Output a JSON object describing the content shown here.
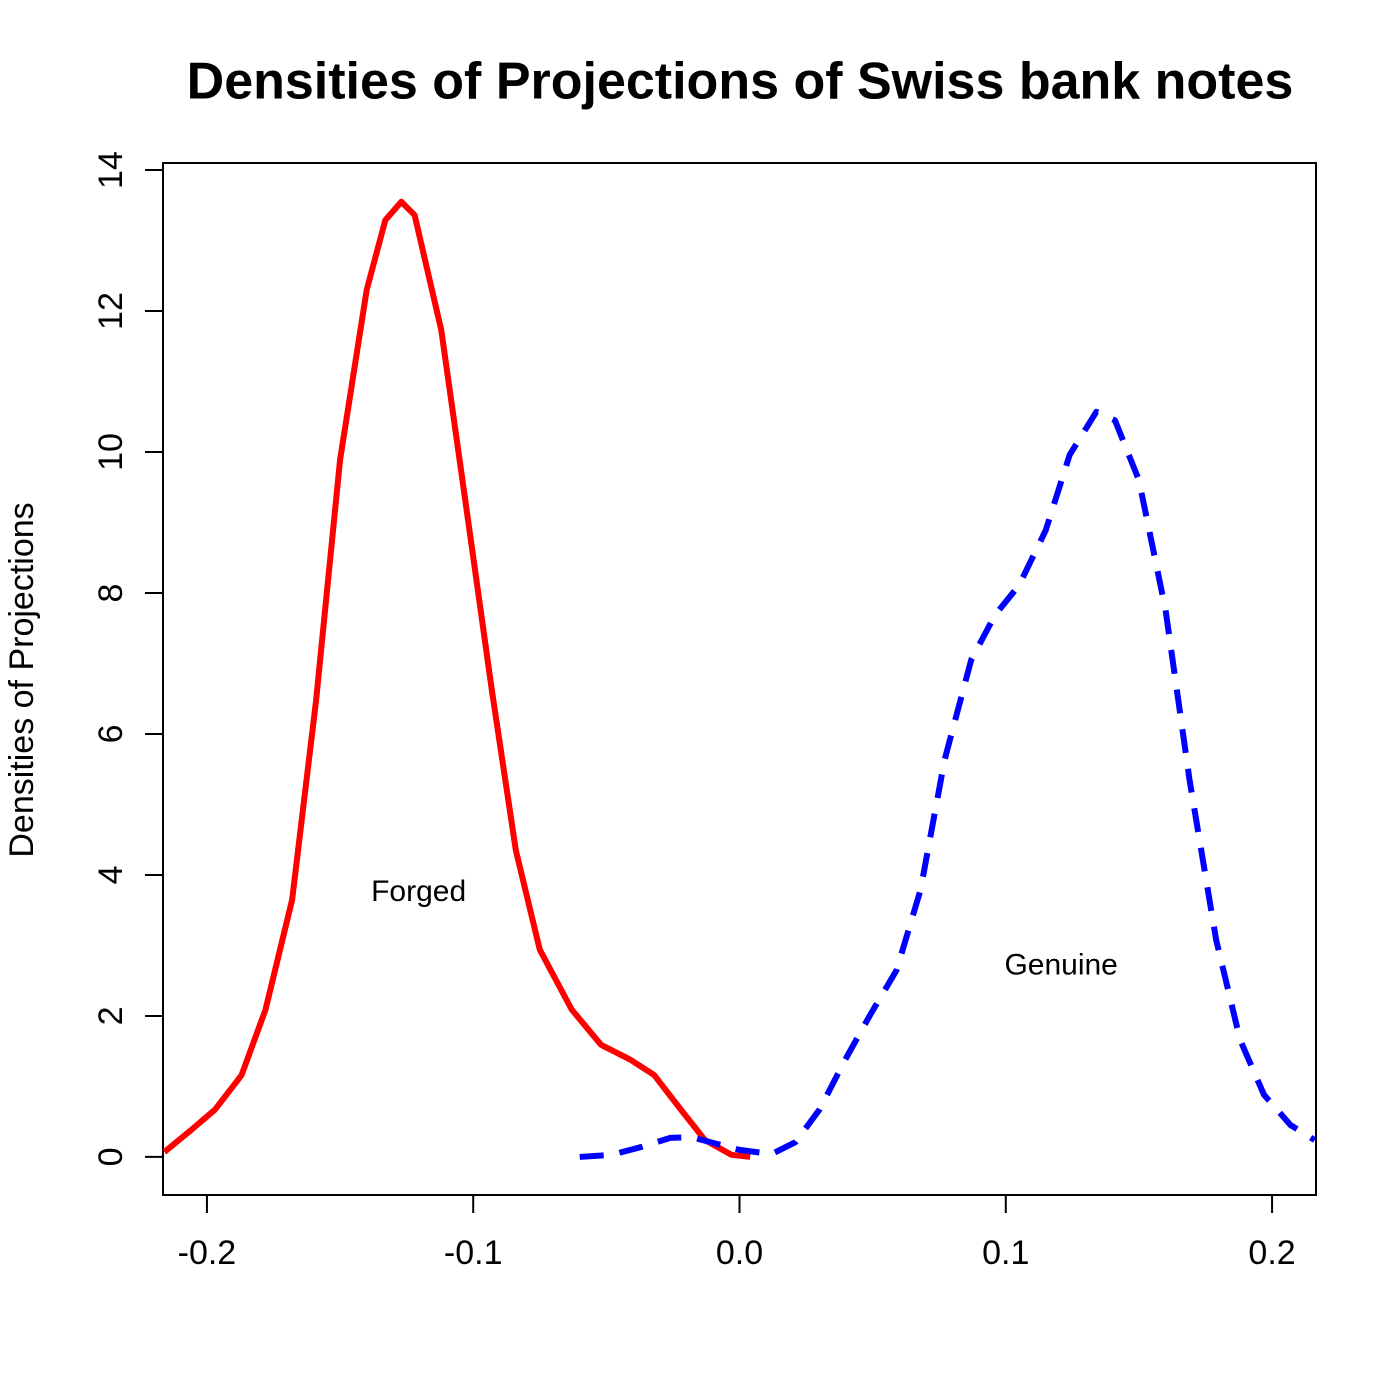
{
  "chart_data": {
    "type": "line",
    "title": "Densities of Projections of Swiss bank notes",
    "y_label": "Densities of Projections",
    "xlim": [
      -0.2165,
      0.2165
    ],
    "ylim": [
      -0.54,
      14.1
    ],
    "xticks": [
      -0.2,
      -0.1,
      {
        "value": 0,
        "label": "0.0"
      },
      0.1,
      0.2
    ],
    "yticks": [
      0,
      2,
      4,
      6,
      8,
      10,
      12,
      14
    ],
    "series": [
      {
        "name": "Forged",
        "color": "#ff0000",
        "dashed": false,
        "x": [
          -0.216,
          -0.206,
          -0.197,
          -0.187,
          -0.178,
          -0.168,
          -0.159,
          -0.15,
          -0.14,
          -0.133,
          -0.127,
          -0.122,
          -0.112,
          -0.103,
          -0.093,
          -0.084,
          -0.075,
          -0.063,
          -0.052,
          -0.041,
          -0.032,
          -0.022,
          -0.013,
          -0.003,
          0.004
        ],
        "values": [
          0.07,
          0.38,
          0.67,
          1.16,
          2.09,
          3.65,
          6.48,
          9.89,
          12.3,
          13.29,
          13.55,
          13.36,
          11.73,
          9.32,
          6.62,
          4.35,
          2.94,
          2.09,
          1.59,
          1.38,
          1.16,
          0.67,
          0.24,
          0.03,
          0.0
        ]
      },
      {
        "name": "Genuine",
        "color": "#0000ff",
        "dashed": true,
        "x": [
          -0.06,
          -0.048,
          -0.037,
          -0.026,
          -0.018,
          -0.011,
          0.0,
          0.012,
          0.021,
          0.03,
          0.04,
          0.049,
          0.059,
          0.068,
          0.077,
          0.087,
          0.096,
          0.105,
          0.115,
          0.124,
          0.134,
          0.141,
          0.15,
          0.16,
          0.169,
          0.179,
          0.188,
          0.197,
          0.207,
          0.216
        ],
        "values": [
          0,
          0.03,
          0.14,
          0.27,
          0.28,
          0.21,
          0.1,
          0.04,
          0.21,
          0.67,
          1.4,
          2.01,
          2.65,
          3.79,
          5.63,
          7.05,
          7.69,
          8.11,
          8.89,
          9.96,
          10.57,
          10.45,
          9.6,
          7.76,
          5.35,
          3.08,
          1.66,
          0.88,
          0.45,
          0.24
        ]
      }
    ],
    "annotations": [
      {
        "text": "Forged",
        "x": -0.1205,
        "y": 3.74,
        "color": "#ff0000"
      },
      {
        "text": "Genuine",
        "x": 0.1208,
        "y": 2.7,
        "color": "#0000ff"
      }
    ]
  }
}
